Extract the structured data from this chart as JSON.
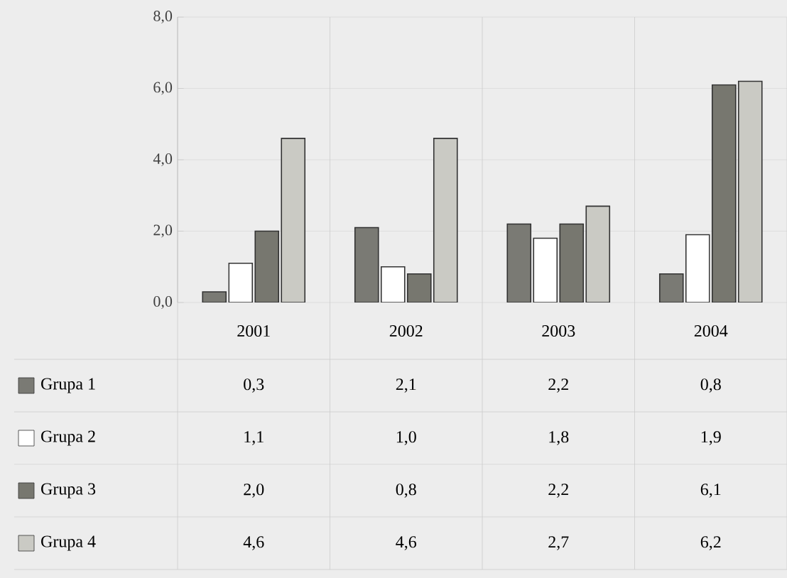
{
  "chart_data": {
    "type": "bar",
    "categories": [
      "2001",
      "2002",
      "2003",
      "2004"
    ],
    "series": [
      {
        "name": "Grupa 1",
        "color": "#7a7a74",
        "values": [
          0.3,
          2.1,
          2.2,
          0.8
        ],
        "value_labels": [
          "0,3",
          "2,1",
          "2,2",
          "0,8"
        ]
      },
      {
        "name": "Grupa 2",
        "color": "#ffffff",
        "values": [
          1.1,
          1.0,
          1.8,
          1.9
        ],
        "value_labels": [
          "1,1",
          "1,0",
          "1,8",
          "1,9"
        ]
      },
      {
        "name": "Grupa 3",
        "color": "#77776f",
        "values": [
          2.0,
          0.8,
          2.2,
          6.1
        ],
        "value_labels": [
          "2,0",
          "0,8",
          "2,2",
          "6,1"
        ]
      },
      {
        "name": "Grupa 4",
        "color": "#cacac4",
        "values": [
          4.6,
          4.6,
          2.7,
          6.2
        ],
        "value_labels": [
          "4,6",
          "4,6",
          "2,7",
          "6,2"
        ]
      }
    ],
    "ylim": [
      0,
      8
    ],
    "yticks": [
      {
        "value": 0,
        "label": "0,0"
      },
      {
        "value": 2,
        "label": "2,0"
      },
      {
        "value": 4,
        "label": "4,0"
      },
      {
        "value": 6,
        "label": "6,0"
      },
      {
        "value": 8,
        "label": "8,0"
      }
    ],
    "grid": "y",
    "legend": "bottom"
  }
}
